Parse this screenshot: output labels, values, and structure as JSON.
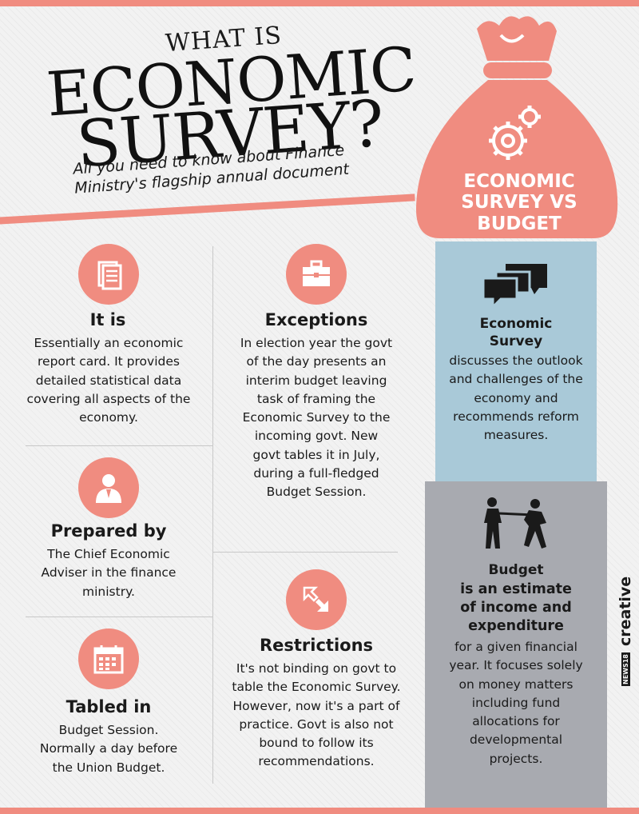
{
  "header": {
    "title_line1": "WHAT IS",
    "title_line2": "ECONOMIC",
    "title_line3": "SURVEY?",
    "subtitle": "All you need to know about Finance Ministry's flagship annual document"
  },
  "sections": {
    "it_is": {
      "heading": "It is",
      "text": "Essentially an economic report card. It provides detailed statistical data covering all aspects of the economy."
    },
    "prepared_by": {
      "heading": "Prepared by",
      "text": "The Chief Economic Adviser in the finance ministry."
    },
    "tabled_in": {
      "heading": "Tabled in",
      "text": "Budget Session. Normally a day before the Union Budget."
    },
    "exceptions": {
      "heading": "Exceptions",
      "text": "In election year the govt of the day presents an interim budget leaving task of framing the Economic Survey to the incoming govt. New govt tables it in July, during a full-fledged Budget Session."
    },
    "restrictions": {
      "heading": "Restrictions",
      "text": "It's not binding on govt to table the Economic Survey. However, now it's a part of practice. Govt is also not bound to follow its recommendations."
    }
  },
  "comparison": {
    "bag_label_1": "ECONOMIC",
    "bag_label_2": "SURVEY VS",
    "bag_label_3": "BUDGET",
    "survey_heading": "Economic Survey",
    "survey_text": "discusses the outlook and challenges of the economy and recommends reform measures.",
    "budget_heading": "Budget",
    "budget_bold": "is an estimate of income and expenditure",
    "budget_text": "for a given financial year. It focuses solely on money matters including fund allocations for developmental projects."
  },
  "brand": {
    "logo_small": "NEWS18",
    "logo_word": "creative"
  },
  "colors": {
    "accent": "#f08c80",
    "blue_panel": "#a9c9d8",
    "grey_panel": "#a8aab0",
    "background": "#f2f2f2"
  },
  "icons": [
    "document-icon",
    "briefcase-icon",
    "person-icon",
    "expand-arrows-icon",
    "calendar-icon",
    "money-bag-icon",
    "gear-icon",
    "speech-bubbles-icon",
    "tug-of-war-icon"
  ]
}
